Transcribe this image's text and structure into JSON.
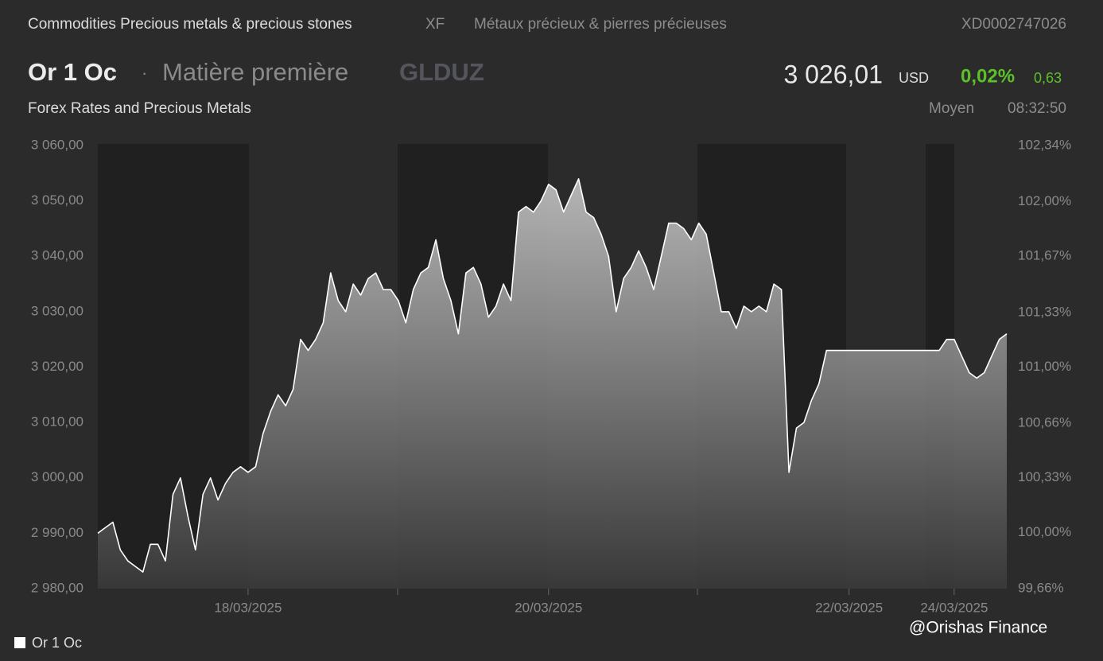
{
  "header": {
    "category": "Commodities Precious metals & precious stones",
    "exchange": "XF",
    "category_fr": "Métaux précieux & pierres précieuses",
    "isin": "XD0002747026",
    "name": "Or 1 Oc",
    "separator": "·",
    "kind": "Matière première",
    "ticker": "GLDUZ",
    "price": "3 026,01",
    "currency": "USD",
    "change_pct": "0,02%",
    "change": "0,63",
    "source": "Forex Rates and Precious Metals",
    "price_type": "Moyen",
    "time": "08:32:50"
  },
  "chart_data": {
    "type": "line",
    "categories": [
      null,
      null,
      null,
      null,
      null,
      null,
      null,
      null,
      null,
      null,
      null,
      null,
      null,
      null,
      null,
      null,
      null,
      null,
      null,
      null,
      "18/03/2025",
      null,
      null,
      null,
      null,
      null,
      null,
      null,
      null,
      null,
      null,
      null,
      null,
      null,
      null,
      null,
      null,
      null,
      null,
      null,
      null,
      null,
      null,
      null,
      null,
      null,
      null,
      null,
      null,
      null,
      null,
      null,
      null,
      null,
      null,
      null,
      null,
      null,
      null,
      null,
      "20/03/2025",
      null,
      null,
      null,
      null,
      null,
      null,
      null,
      null,
      null,
      null,
      null,
      null,
      null,
      null,
      null,
      null,
      null,
      null,
      null,
      null,
      null,
      null,
      null,
      null,
      null,
      null,
      null,
      null,
      null,
      null,
      null,
      null,
      null,
      null,
      null,
      null,
      null,
      null,
      null,
      "22/03/2025",
      null,
      null,
      null,
      null,
      null,
      null,
      null,
      null,
      null,
      null,
      null,
      null,
      null,
      "24/03/2025",
      null,
      null,
      null,
      null,
      null,
      null,
      null
    ],
    "series": [
      {
        "name": "Or 1 Oc",
        "color": "#ffffff",
        "values": [
          2990,
          2991,
          2992,
          2987,
          2985,
          2984,
          2983,
          2988,
          2988,
          2985,
          2997,
          3000,
          2993,
          2987,
          2997,
          3000,
          2996,
          2999,
          3001,
          3002,
          3001,
          3002,
          3008,
          3012,
          3015,
          3013,
          3016,
          3025,
          3023,
          3025,
          3028,
          3037,
          3032,
          3030,
          3035,
          3033,
          3036,
          3037,
          3034,
          3034,
          3032,
          3028,
          3034,
          3037,
          3038,
          3043,
          3036,
          3032,
          3026,
          3037,
          3038,
          3035,
          3029,
          3031,
          3035,
          3032,
          3048,
          3049,
          3048,
          3050,
          3053,
          3052,
          3048,
          3051,
          3054,
          3048,
          3047,
          3044,
          3040,
          3030,
          3036,
          3038,
          3041,
          3038,
          3034,
          3040,
          3046,
          3046,
          3045,
          3043,
          3046,
          3044,
          3037,
          3030,
          3030,
          3027,
          3031,
          3030,
          3031,
          3030,
          3035,
          3034,
          3001,
          3009,
          3010,
          3014,
          3017,
          3023,
          3023,
          3023,
          3023,
          3023,
          3023,
          3023,
          3023,
          3023,
          3023,
          3023,
          3023,
          3023,
          3023,
          3023,
          3023,
          3025,
          3025,
          3022,
          3019,
          3018,
          3019,
          3022,
          3025,
          3026
        ]
      }
    ],
    "ylim": [
      2980,
      3060
    ],
    "yticks": [
      {
        "value": 2980,
        "label": "2 980,00"
      },
      {
        "value": 2990,
        "label": "2 990,00"
      },
      {
        "value": 3000,
        "label": "3 000,00"
      },
      {
        "value": 3010,
        "label": "3 010,00"
      },
      {
        "value": 3020,
        "label": "3 020,00"
      },
      {
        "value": 3030,
        "label": "3 030,00"
      },
      {
        "value": 3040,
        "label": "3 040,00"
      },
      {
        "value": 3050,
        "label": "3 050,00"
      },
      {
        "value": 3060,
        "label": "3 060,00"
      }
    ],
    "y2lim": [
      99.66,
      102.34
    ],
    "y2ticks": [
      {
        "value": 99.66,
        "label": "99,66%"
      },
      {
        "value": 100,
        "label": "100,00%"
      },
      {
        "value": 100.33,
        "label": "100,33%"
      },
      {
        "value": 100.66,
        "label": "100,66%"
      },
      {
        "value": 101,
        "label": "101,00%"
      },
      {
        "value": 101.33,
        "label": "101,33%"
      },
      {
        "value": 101.67,
        "label": "101,67%"
      },
      {
        "value": 102,
        "label": "102,00%"
      },
      {
        "value": 102.34,
        "label": "102,34%"
      }
    ],
    "grid": false
  },
  "watermark": "@Orishas Finance"
}
